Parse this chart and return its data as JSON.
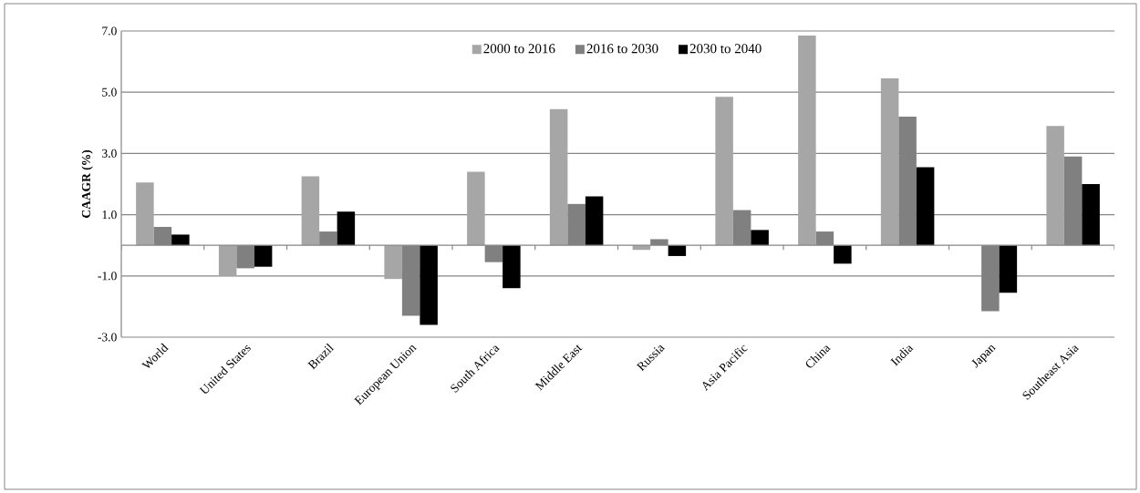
{
  "chart_data": {
    "type": "bar",
    "ylabel": "CAAGR (%)",
    "categories": [
      "World",
      "United States",
      "Brazil",
      "European Union",
      "South Africa",
      "Middle East",
      "Russia",
      "Asia Pacific",
      "China",
      "India",
      "Japan",
      "Southeast Asia"
    ],
    "series": [
      {
        "name": "2000 to 2016",
        "color": "#a6a6a6",
        "values": [
          2.05,
          -1.0,
          2.25,
          -1.1,
          2.4,
          4.45,
          -0.15,
          4.85,
          6.85,
          5.45,
          0.0,
          3.9
        ]
      },
      {
        "name": "2016 to 2030",
        "color": "#808080",
        "values": [
          0.6,
          -0.75,
          0.45,
          -2.3,
          -0.55,
          1.35,
          0.2,
          1.15,
          0.45,
          4.2,
          -2.15,
          2.9
        ]
      },
      {
        "name": "2030 to 2040",
        "color": "#000000",
        "values": [
          0.35,
          -0.7,
          1.1,
          -2.6,
          -1.4,
          1.6,
          -0.35,
          0.5,
          -0.6,
          2.55,
          -1.55,
          2.0
        ]
      }
    ],
    "ylim": [
      -3,
      7
    ],
    "yticks": [
      {
        "value": -3,
        "label": "-3.0"
      },
      {
        "value": -1,
        "label": "-1.0"
      },
      {
        "value": 1,
        "label": "1.0"
      },
      {
        "value": 3,
        "label": "3.0"
      },
      {
        "value": 5,
        "label": "5.0"
      },
      {
        "value": 7,
        "label": "7.0"
      }
    ],
    "grid": "y",
    "legend": "top"
  }
}
